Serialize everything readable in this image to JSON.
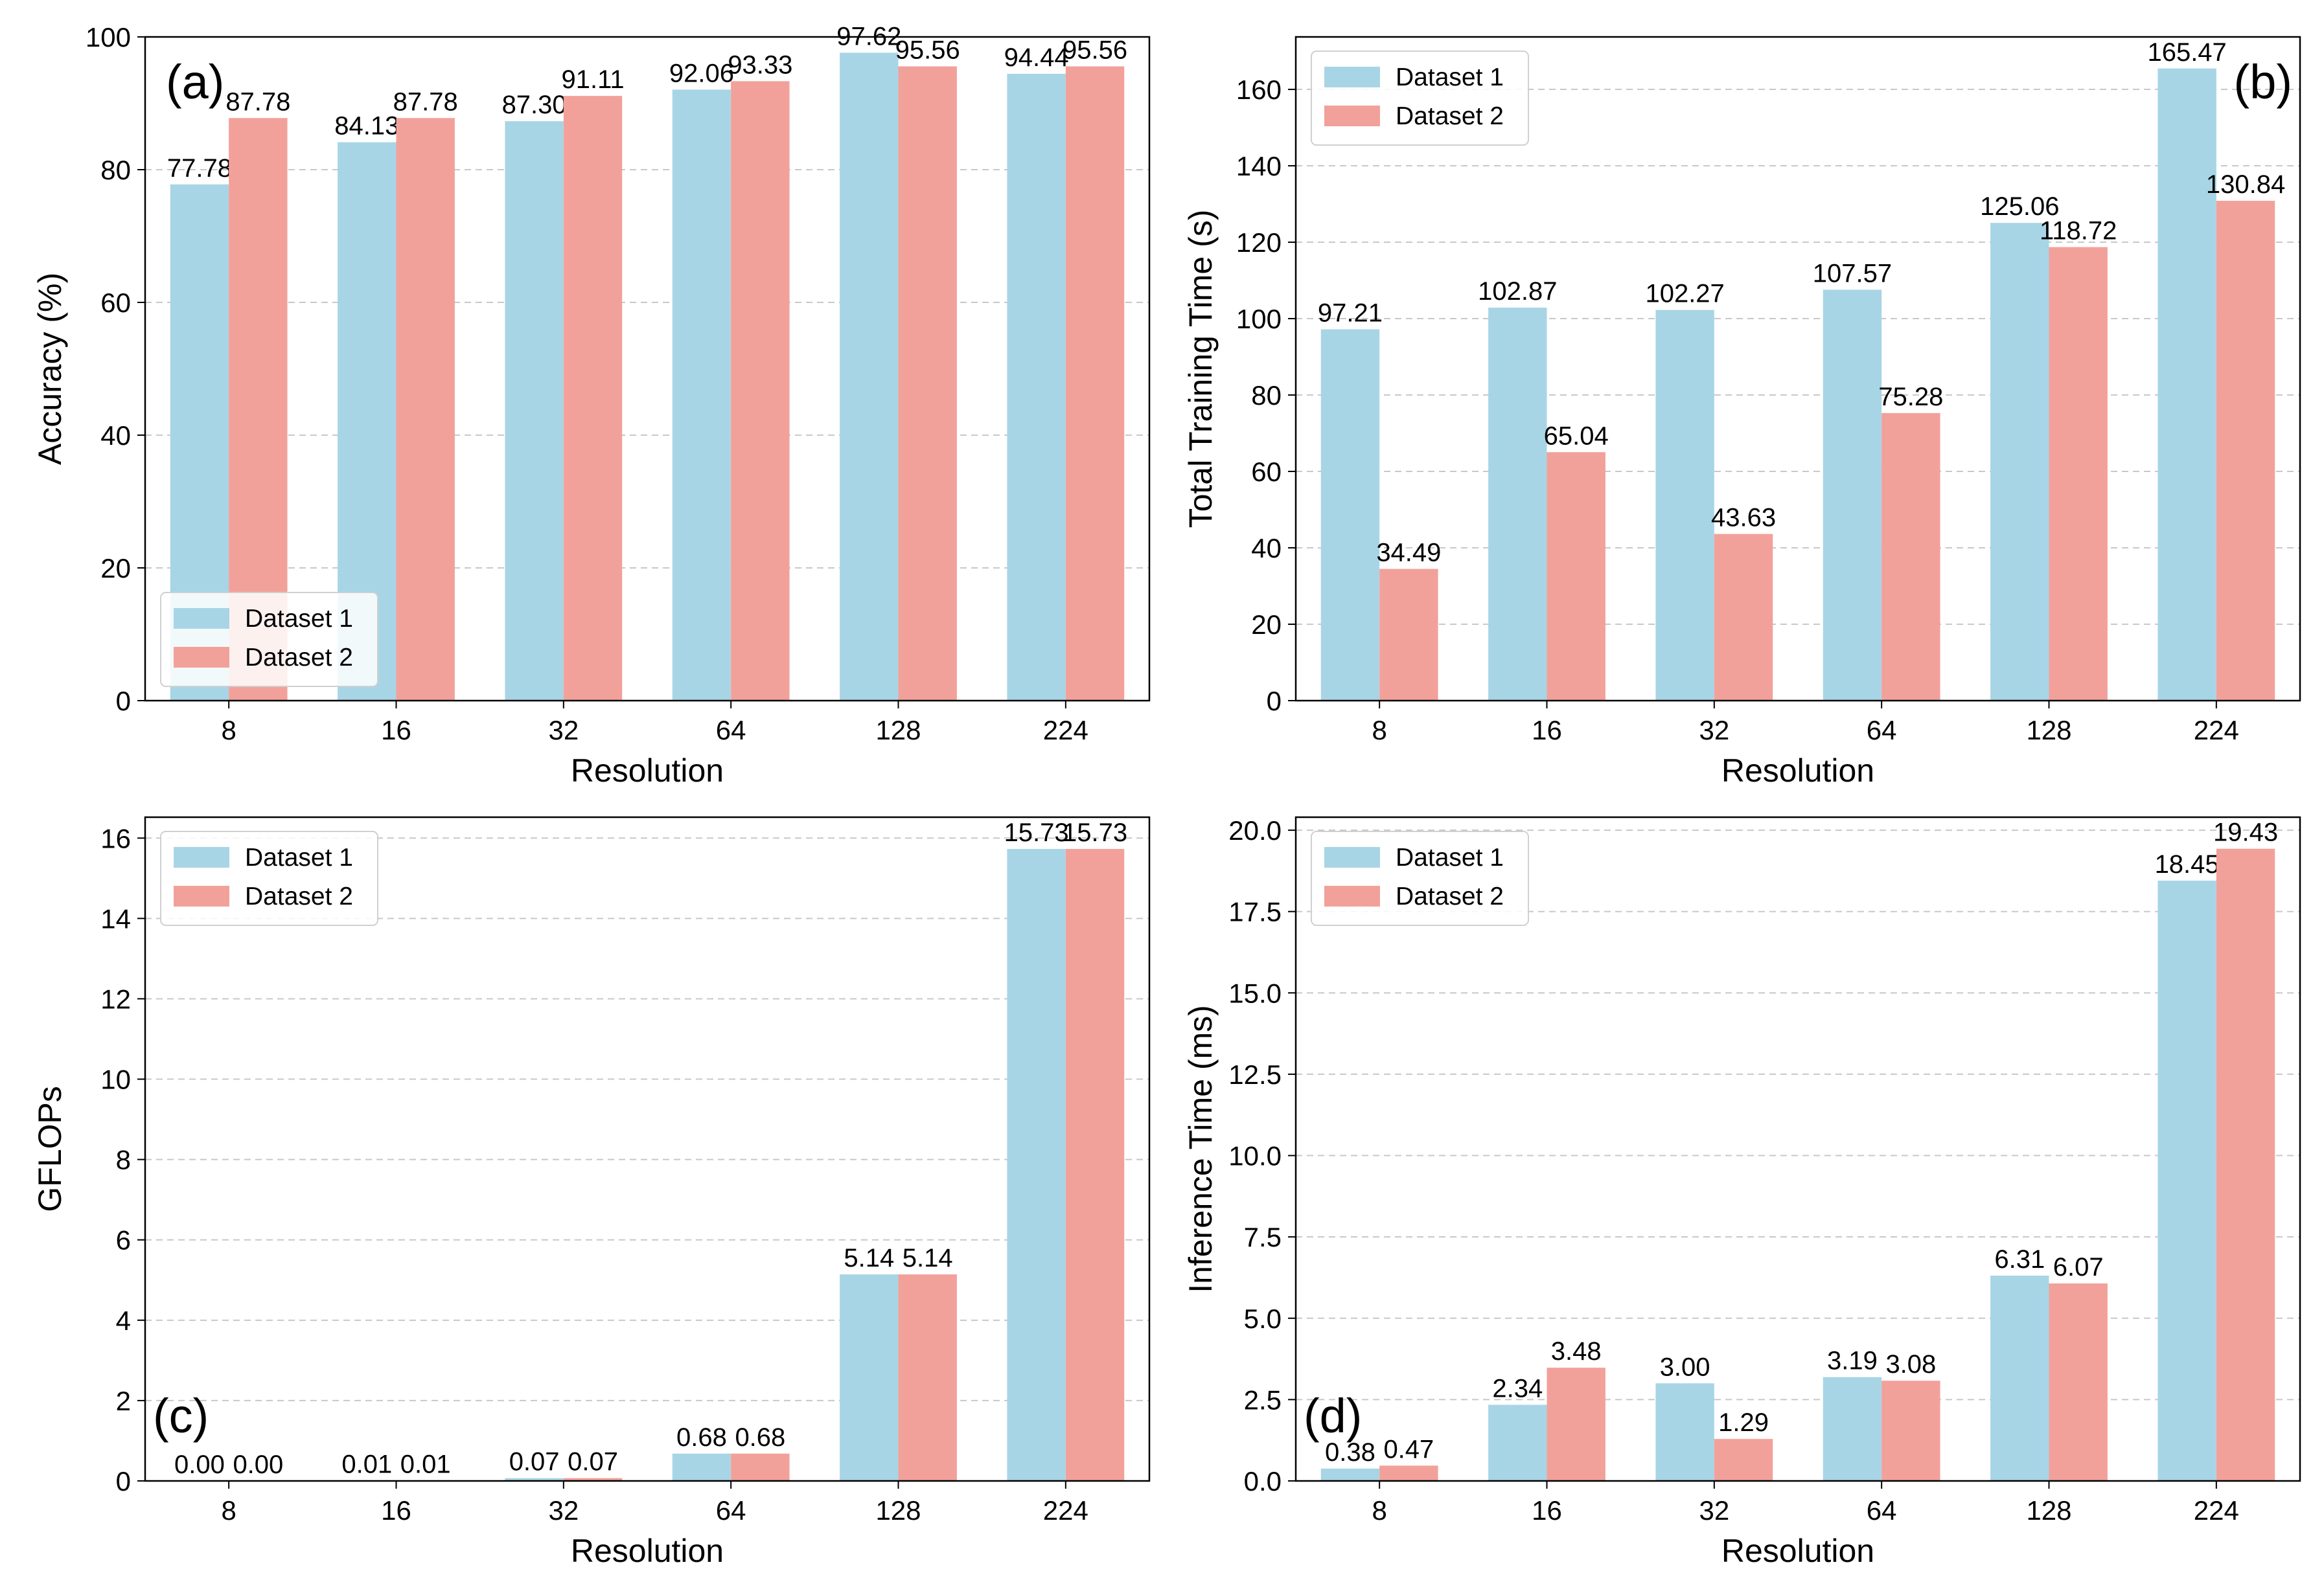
{
  "chart_data": [
    {
      "type": "bar",
      "panel_tag": "(a)",
      "xlabel": "Resolution",
      "ylabel": "Accuracy (%)",
      "ylim": [
        0,
        100
      ],
      "yticks": [
        "0",
        "20",
        "40",
        "60",
        "80",
        "100"
      ],
      "categories": [
        "8",
        "16",
        "32",
        "64",
        "128",
        "224"
      ],
      "series": [
        {
          "name": "Dataset 1",
          "color": "#a8d5e5",
          "values": [
            77.78,
            84.13,
            87.3,
            92.06,
            97.62,
            94.44
          ],
          "labels": [
            "77.78",
            "84.13",
            "87.30",
            "92.06",
            "97.62",
            "94.44"
          ]
        },
        {
          "name": "Dataset 2",
          "color": "#f2a19a",
          "values": [
            87.78,
            87.78,
            91.11,
            93.33,
            95.56,
            95.56
          ],
          "labels": [
            "87.78",
            "87.78",
            "91.11",
            "93.33",
            "95.56",
            "95.56"
          ]
        }
      ],
      "legend_position": "bottom-left",
      "tag_position": "top-left",
      "grid": "y-dashed"
    },
    {
      "type": "bar",
      "panel_tag": "(b)",
      "xlabel": "Resolution",
      "ylabel": "Total Training Time (s)",
      "ylim": [
        0,
        173.74
      ],
      "yticks": [
        "0",
        "20",
        "40",
        "60",
        "80",
        "100",
        "120",
        "140",
        "160"
      ],
      "categories": [
        "8",
        "16",
        "32",
        "64",
        "128",
        "224"
      ],
      "series": [
        {
          "name": "Dataset 1",
          "color": "#a8d5e5",
          "values": [
            97.21,
            102.87,
            102.27,
            107.57,
            125.06,
            165.47
          ],
          "labels": [
            "97.21",
            "102.87",
            "102.27",
            "107.57",
            "125.06",
            "165.47"
          ]
        },
        {
          "name": "Dataset 2",
          "color": "#f2a19a",
          "values": [
            34.49,
            65.04,
            43.63,
            75.28,
            118.72,
            130.84
          ],
          "labels": [
            "34.49",
            "65.04",
            "43.63",
            "75.28",
            "118.72",
            "130.84"
          ]
        }
      ],
      "legend_position": "top-left",
      "tag_position": "top-right",
      "grid": "y-dashed"
    },
    {
      "type": "bar",
      "panel_tag": "(c)",
      "xlabel": "Resolution",
      "ylabel": "GFLOPs",
      "ylim": [
        0,
        16.52
      ],
      "yticks": [
        "0",
        "2",
        "4",
        "6",
        "8",
        "10",
        "12",
        "14",
        "16"
      ],
      "categories": [
        "8",
        "16",
        "32",
        "64",
        "128",
        "224"
      ],
      "series": [
        {
          "name": "Dataset 1",
          "color": "#a8d5e5",
          "values": [
            0.0,
            0.01,
            0.07,
            0.68,
            5.14,
            15.73
          ],
          "labels": [
            "0.00",
            "0.01",
            "0.07",
            "0.68",
            "5.14",
            "15.73"
          ]
        },
        {
          "name": "Dataset 2",
          "color": "#f2a19a",
          "values": [
            0.0,
            0.01,
            0.07,
            0.68,
            5.14,
            15.73
          ],
          "labels": [
            "0.00",
            "0.01",
            "0.07",
            "0.68",
            "5.14",
            "15.73"
          ]
        }
      ],
      "legend_position": "top-left",
      "tag_position": "bottom-left",
      "grid": "y-dashed"
    },
    {
      "type": "bar",
      "panel_tag": "(d)",
      "xlabel": "Resolution",
      "ylabel": "Inference Time (ms)",
      "ylim": [
        0,
        20.4
      ],
      "yticks": [
        "0.0",
        "2.5",
        "5.0",
        "7.5",
        "10.0",
        "12.5",
        "15.0",
        "17.5",
        "20.0"
      ],
      "categories": [
        "8",
        "16",
        "32",
        "64",
        "128",
        "224"
      ],
      "series": [
        {
          "name": "Dataset 1",
          "color": "#a8d5e5",
          "values": [
            0.38,
            2.34,
            3.0,
            3.19,
            6.31,
            18.45
          ],
          "labels": [
            "0.38",
            "2.34",
            "3.00",
            "3.19",
            "6.31",
            "18.45"
          ]
        },
        {
          "name": "Dataset 2",
          "color": "#f2a19a",
          "values": [
            0.47,
            3.48,
            1.29,
            3.08,
            6.07,
            19.43
          ],
          "labels": [
            "0.47",
            "3.48",
            "1.29",
            "3.08",
            "6.07",
            "19.43"
          ]
        }
      ],
      "legend_position": "top-left",
      "tag_position": "bottom-left",
      "grid": "y-dashed"
    }
  ]
}
